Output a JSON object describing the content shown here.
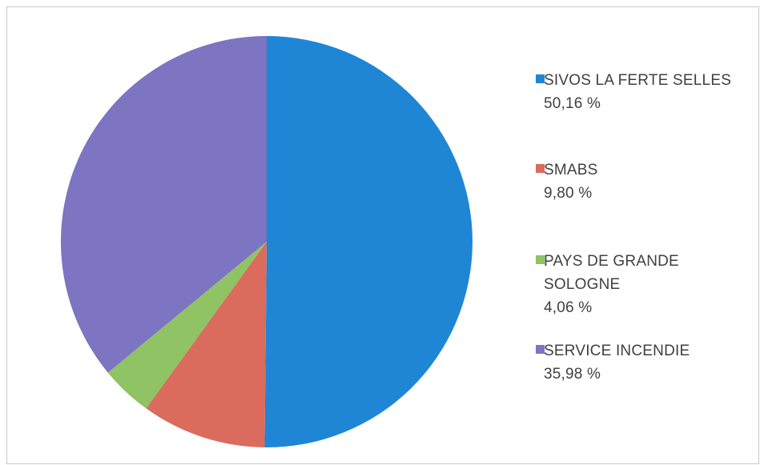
{
  "chart_data": {
    "type": "pie",
    "title": "",
    "legend_position": "right",
    "start": "top, clockwise",
    "slices": [
      {
        "label": "SIVOS LA FERTE SELLES",
        "value": 50.16,
        "value_label": "50,16 %",
        "color": "#1f86d6"
      },
      {
        "label": "SMABS",
        "value": 9.8,
        "value_label": "9,80 %",
        "color": "#db6b5c"
      },
      {
        "label": "PAYS DE GRANDE SOLOGNE",
        "label_lines": [
          "PAYS DE GRANDE",
          "SOLOGNE"
        ],
        "value": 4.06,
        "value_label": "4,06 %",
        "color": "#8fc364"
      },
      {
        "label": "SERVICE INCENDIE",
        "value": 35.98,
        "value_label": "35,98 %",
        "color": "#7d74c2"
      }
    ]
  }
}
